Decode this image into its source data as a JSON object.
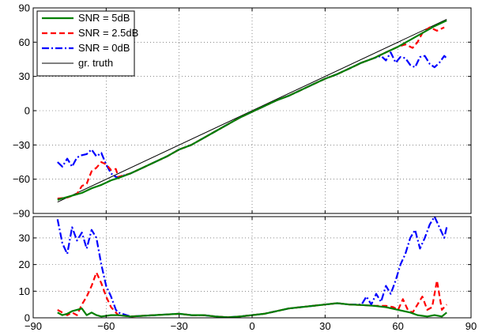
{
  "chart_data": [
    {
      "type": "line",
      "title": "",
      "xlabel": "",
      "ylabel": "",
      "xlim": [
        -90,
        90
      ],
      "ylim": [
        -90,
        90
      ],
      "xticks": [
        -90,
        -60,
        -30,
        0,
        30,
        60,
        90
      ],
      "yticks": [
        -90,
        -60,
        -30,
        0,
        30,
        60,
        90
      ],
      "x_tick_labels_shown": false,
      "grid": true,
      "legend_position": "top-left",
      "series": [
        {
          "name": "SNR = 5dB",
          "color": "#007f00",
          "style": "solid",
          "points": [
            [
              -80,
              -78
            ],
            [
              -75,
              -75
            ],
            [
              -70,
              -72
            ],
            [
              -66,
              -68
            ],
            [
              -62,
              -65
            ],
            [
              -58,
              -61
            ],
            [
              -55,
              -59
            ],
            [
              -50,
              -55
            ],
            [
              -45,
              -50
            ],
            [
              -40,
              -45
            ],
            [
              -35,
              -40
            ],
            [
              -30,
              -34
            ],
            [
              -25,
              -30
            ],
            [
              -20,
              -24
            ],
            [
              -15,
              -18
            ],
            [
              -10,
              -12
            ],
            [
              -5,
              -6
            ],
            [
              0,
              -1
            ],
            [
              5,
              4
            ],
            [
              10,
              9
            ],
            [
              15,
              13
            ],
            [
              20,
              18
            ],
            [
              25,
              23
            ],
            [
              30,
              28
            ],
            [
              35,
              32
            ],
            [
              40,
              37
            ],
            [
              45,
              42
            ],
            [
              50,
              46
            ],
            [
              55,
              51
            ],
            [
              60,
              56
            ],
            [
              65,
              62
            ],
            [
              70,
              68
            ],
            [
              75,
              74
            ],
            [
              80,
              79
            ]
          ]
        },
        {
          "name": "SNR = 2.5dB",
          "color": "#ff0000",
          "style": "dashed",
          "points": [
            [
              -80,
              -77
            ],
            [
              -76,
              -76
            ],
            [
              -72,
              -73
            ],
            [
              -70,
              -66
            ],
            [
              -68,
              -64
            ],
            [
              -66,
              -53
            ],
            [
              -64,
              -50
            ],
            [
              -62,
              -45
            ],
            [
              -60,
              -47
            ],
            [
              -58,
              -52
            ],
            [
              -56,
              -51
            ],
            [
              -55,
              -58
            ],
            [
              -50,
              -55
            ],
            [
              -45,
              -50
            ],
            [
              -40,
              -45
            ],
            [
              -35,
              -40
            ],
            [
              -30,
              -34
            ],
            [
              -25,
              -30
            ],
            [
              -20,
              -24
            ],
            [
              -15,
              -18
            ],
            [
              -10,
              -12
            ],
            [
              -5,
              -6
            ],
            [
              0,
              -1
            ],
            [
              5,
              4
            ],
            [
              10,
              9
            ],
            [
              15,
              13
            ],
            [
              20,
              18
            ],
            [
              25,
              23
            ],
            [
              30,
              28
            ],
            [
              35,
              32
            ],
            [
              40,
              37
            ],
            [
              45,
              42
            ],
            [
              50,
              46
            ],
            [
              55,
              51
            ],
            [
              60,
              56
            ],
            [
              63,
              58
            ],
            [
              66,
              55
            ],
            [
              68,
              60
            ],
            [
              70,
              68
            ],
            [
              73,
              73
            ],
            [
              76,
              70
            ],
            [
              79,
              73
            ]
          ]
        },
        {
          "name": "SNR = 0dB",
          "color": "#0000ff",
          "style": "dashdot",
          "points": [
            [
              -80,
              -45
            ],
            [
              -78,
              -49
            ],
            [
              -76,
              -42
            ],
            [
              -74,
              -49
            ],
            [
              -72,
              -41
            ],
            [
              -70,
              -39
            ],
            [
              -68,
              -38
            ],
            [
              -66,
              -34
            ],
            [
              -64,
              -40
            ],
            [
              -62,
              -37
            ],
            [
              -60,
              -47
            ],
            [
              -58,
              -55
            ],
            [
              -56,
              -58
            ],
            [
              -55,
              -58
            ],
            [
              -50,
              -55
            ],
            [
              -45,
              -50
            ],
            [
              -40,
              -45
            ],
            [
              -35,
              -40
            ],
            [
              -30,
              -34
            ],
            [
              -25,
              -30
            ],
            [
              -20,
              -24
            ],
            [
              -15,
              -18
            ],
            [
              -10,
              -12
            ],
            [
              -5,
              -6
            ],
            [
              0,
              -1
            ],
            [
              5,
              4
            ],
            [
              10,
              9
            ],
            [
              15,
              13
            ],
            [
              20,
              18
            ],
            [
              25,
              23
            ],
            [
              30,
              28
            ],
            [
              35,
              32
            ],
            [
              40,
              37
            ],
            [
              45,
              42
            ],
            [
              50,
              46
            ],
            [
              53,
              48
            ],
            [
              55,
              44
            ],
            [
              57,
              51
            ],
            [
              59,
              42
            ],
            [
              61,
              47
            ],
            [
              63,
              46
            ],
            [
              65,
              40
            ],
            [
              67,
              38
            ],
            [
              69,
              47
            ],
            [
              71,
              48
            ],
            [
              73,
              41
            ],
            [
              75,
              38
            ],
            [
              77,
              42
            ],
            [
              79,
              48
            ],
            [
              80,
              46
            ]
          ]
        },
        {
          "name": "gr. truth",
          "color": "#000000",
          "style": "solid",
          "points": [
            [
              -80,
              -80
            ],
            [
              80,
              80
            ]
          ]
        }
      ]
    },
    {
      "type": "line",
      "title": "",
      "xlabel": "",
      "ylabel": "",
      "xlim": [
        -90,
        90
      ],
      "ylim": [
        0,
        38
      ],
      "xticks": [
        -90,
        -60,
        -30,
        0,
        30,
        60,
        90
      ],
      "yticks": [
        0,
        10,
        20,
        30
      ],
      "grid": true,
      "series": [
        {
          "color": "#007f00",
          "style": "solid",
          "points": [
            [
              -80,
              2
            ],
            [
              -78,
              1
            ],
            [
              -76,
              1.5
            ],
            [
              -74,
              2.5
            ],
            [
              -72,
              3
            ],
            [
              -70,
              3.5
            ],
            [
              -68,
              1
            ],
            [
              -66,
              2
            ],
            [
              -64,
              1
            ],
            [
              -62,
              0.5
            ],
            [
              -58,
              1
            ],
            [
              -55,
              1
            ],
            [
              -50,
              0.5
            ],
            [
              -40,
              1
            ],
            [
              -30,
              1.5
            ],
            [
              -25,
              1
            ],
            [
              -20,
              1
            ],
            [
              -15,
              0.5
            ],
            [
              -10,
              0.2
            ],
            [
              -5,
              0.5
            ],
            [
              0,
              1
            ],
            [
              5,
              1.5
            ],
            [
              10,
              2.5
            ],
            [
              15,
              3.5
            ],
            [
              20,
              4
            ],
            [
              30,
              5
            ],
            [
              35,
              5.5
            ],
            [
              40,
              5
            ],
            [
              45,
              4.8
            ],
            [
              50,
              4.5
            ],
            [
              55,
              4
            ],
            [
              60,
              3
            ],
            [
              65,
              2
            ],
            [
              68,
              1
            ],
            [
              72,
              0.5
            ],
            [
              75,
              1
            ],
            [
              78,
              0.5
            ],
            [
              80,
              2
            ]
          ]
        },
        {
          "color": "#ff0000",
          "style": "dashed",
          "points": [
            [
              -80,
              3
            ],
            [
              -78,
              2
            ],
            [
              -76,
              1
            ],
            [
              -74,
              2
            ],
            [
              -72,
              1
            ],
            [
              -70,
              5
            ],
            [
              -68,
              8
            ],
            [
              -66,
              12
            ],
            [
              -64,
              17
            ],
            [
              -62,
              13
            ],
            [
              -60,
              8
            ],
            [
              -58,
              4
            ],
            [
              -56,
              2
            ],
            [
              -55,
              1
            ],
            [
              -50,
              0.5
            ],
            [
              -40,
              1
            ],
            [
              -30,
              1.5
            ],
            [
              -25,
              1
            ],
            [
              -20,
              1
            ],
            [
              -15,
              0.5
            ],
            [
              -10,
              0.2
            ],
            [
              -5,
              0.5
            ],
            [
              0,
              1
            ],
            [
              5,
              1.5
            ],
            [
              10,
              2.5
            ],
            [
              15,
              3.5
            ],
            [
              20,
              4
            ],
            [
              30,
              5
            ],
            [
              35,
              5.5
            ],
            [
              40,
              5
            ],
            [
              45,
              4.8
            ],
            [
              50,
              4.5
            ],
            [
              55,
              4.5
            ],
            [
              58,
              4
            ],
            [
              60,
              3
            ],
            [
              62,
              7
            ],
            [
              64,
              3
            ],
            [
              66,
              2
            ],
            [
              68,
              5
            ],
            [
              70,
              8
            ],
            [
              72,
              3
            ],
            [
              74,
              4
            ],
            [
              76,
              14
            ],
            [
              78,
              3
            ],
            [
              80,
              5
            ]
          ]
        },
        {
          "color": "#0000ff",
          "style": "dashdot",
          "points": [
            [
              -80,
              37
            ],
            [
              -78,
              28
            ],
            [
              -76,
              24
            ],
            [
              -74,
              34
            ],
            [
              -72,
              29
            ],
            [
              -70,
              32
            ],
            [
              -68,
              26
            ],
            [
              -66,
              33
            ],
            [
              -64,
              30
            ],
            [
              -62,
              20
            ],
            [
              -60,
              12
            ],
            [
              -58,
              8
            ],
            [
              -56,
              3
            ],
            [
              -55,
              2
            ],
            [
              -50,
              0.5
            ],
            [
              -40,
              1
            ],
            [
              -30,
              1.5
            ],
            [
              -25,
              1
            ],
            [
              -20,
              1
            ],
            [
              -15,
              0.5
            ],
            [
              -10,
              0.2
            ],
            [
              -5,
              0.5
            ],
            [
              0,
              1
            ],
            [
              5,
              1.5
            ],
            [
              10,
              2.5
            ],
            [
              15,
              3.5
            ],
            [
              20,
              4
            ],
            [
              30,
              5
            ],
            [
              35,
              5.5
            ],
            [
              40,
              5
            ],
            [
              45,
              5
            ],
            [
              47,
              8
            ],
            [
              49,
              5
            ],
            [
              51,
              9
            ],
            [
              53,
              6
            ],
            [
              55,
              12
            ],
            [
              57,
              9
            ],
            [
              59,
              14
            ],
            [
              61,
              20
            ],
            [
              63,
              24
            ],
            [
              65,
              30
            ],
            [
              67,
              33
            ],
            [
              69,
              26
            ],
            [
              71,
              30
            ],
            [
              73,
              35
            ],
            [
              75,
              38
            ],
            [
              77,
              34
            ],
            [
              79,
              30
            ],
            [
              80,
              34
            ]
          ]
        }
      ]
    }
  ]
}
